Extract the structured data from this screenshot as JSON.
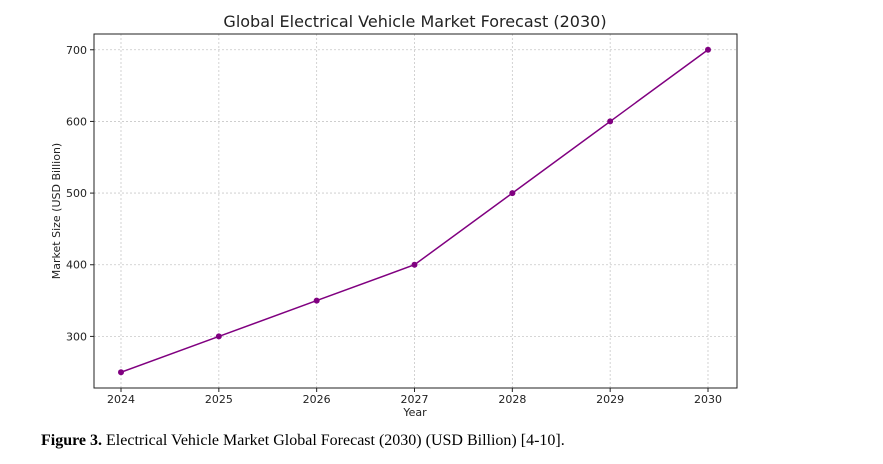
{
  "chart_data": {
    "type": "line",
    "title": "Global Electrical Vehicle Market Forecast (2030)",
    "xlabel": "Year",
    "ylabel": "Market Size (USD Billion)",
    "x": [
      "2024",
      "2025",
      "2026",
      "2027",
      "2028",
      "2029",
      "2030"
    ],
    "series": [
      {
        "values": [
          250,
          300,
          350,
          400,
          500,
          600,
          700
        ]
      }
    ],
    "yticks": [
      300,
      400,
      500,
      600,
      700
    ],
    "ylim": [
      228,
      722
    ],
    "grid": true,
    "marker": "circle",
    "line_color": "#800080"
  },
  "caption": {
    "label": "Figure 3.",
    "text": " Electrical Vehicle Market Global Forecast (2030) (USD Billion) [4-10]."
  }
}
